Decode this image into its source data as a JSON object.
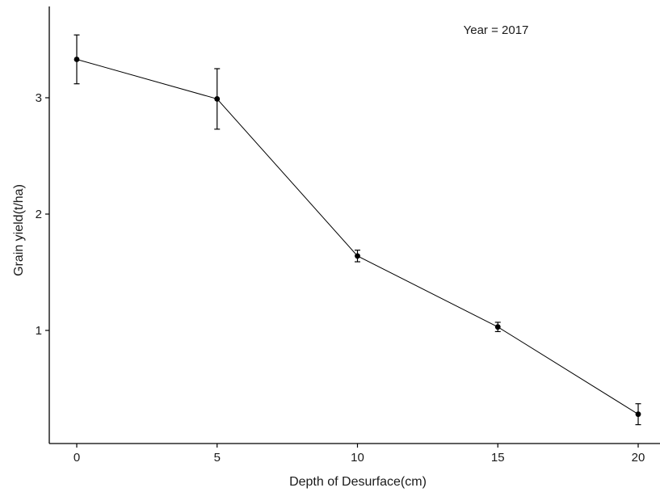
{
  "chart_data": {
    "type": "line",
    "annotation": "Year = 2017",
    "xlabel": "Depth of Desurface(cm)",
    "ylabel": "Grain yield(t/ha)",
    "x_ticks": [
      0,
      5,
      10,
      15,
      20
    ],
    "y_ticks": [
      1,
      2,
      3
    ],
    "xlim": [
      -1,
      20.8
    ],
    "ylim": [
      0,
      3.8
    ],
    "grid": false,
    "series": [
      {
        "x": [
          0,
          5,
          10,
          15,
          20
        ],
        "y": [
          3.33,
          2.99,
          1.64,
          1.03,
          0.28
        ],
        "error_low": [
          3.12,
          2.73,
          1.59,
          0.99,
          0.19
        ],
        "error_high": [
          3.54,
          3.25,
          1.69,
          1.07,
          0.37
        ]
      }
    ],
    "colors": {
      "line": "#000000",
      "axis": "#000000"
    }
  }
}
